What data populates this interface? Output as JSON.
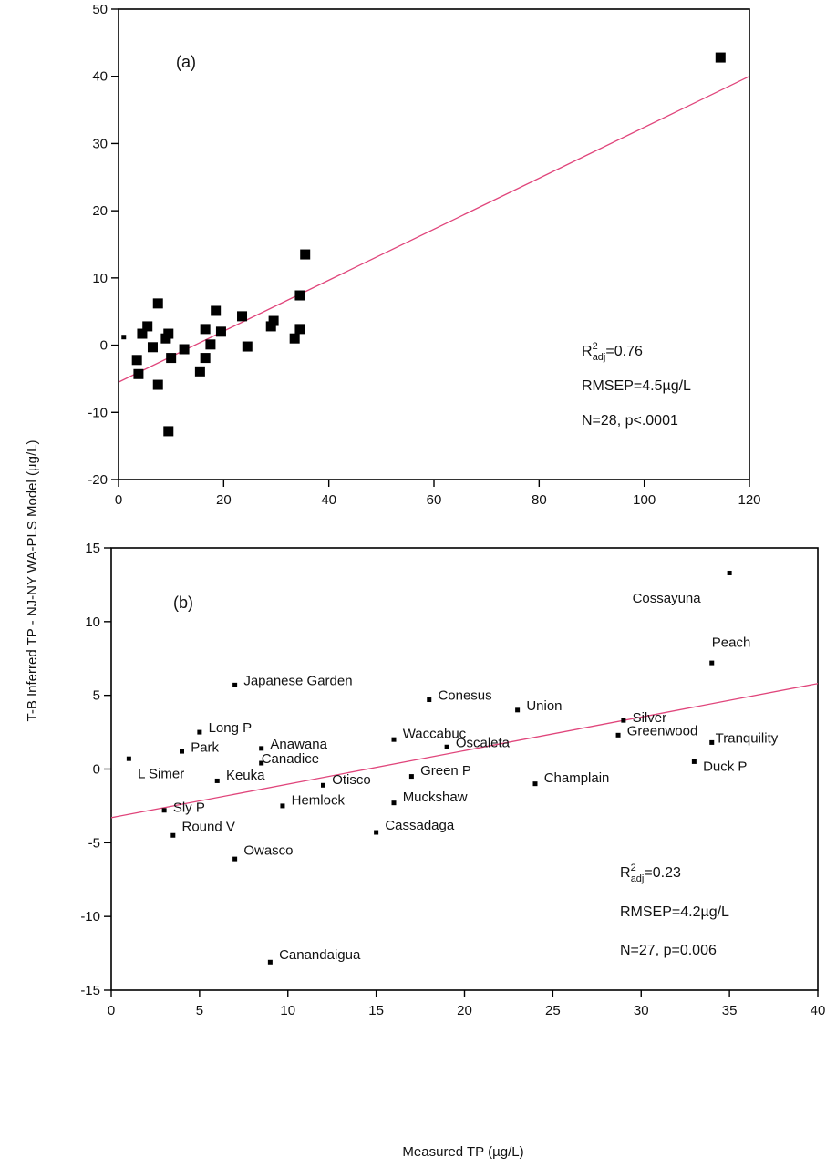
{
  "axes": {
    "shared_ylabel": "T-B Inferred TP - NJ-NY WA-PLS Model (µg/L)",
    "shared_xlabel": "Measured TP (µg/L)"
  },
  "chart_data": [
    {
      "type": "scatter",
      "panel_label": "(a)",
      "xlim": [
        0,
        120
      ],
      "ylim": [
        -20,
        50
      ],
      "x_ticks": [
        0,
        20,
        40,
        60,
        80,
        100,
        120
      ],
      "y_ticks": [
        -20,
        -10,
        0,
        10,
        20,
        30,
        40,
        50
      ],
      "stats": {
        "r2_prefix": "R",
        "r2_sup": "2",
        "r2_sub": "adj",
        "r2_value": "=0.76",
        "rmsep": "RMSEP=4.5µg/L",
        "n_p": "N=28, p<.0001"
      },
      "fit_line": {
        "x": [
          0,
          120
        ],
        "y": [
          -5.5,
          40
        ]
      },
      "points": [
        {
          "x": 1,
          "y": 1.2,
          "size": "small"
        },
        {
          "x": 3.5,
          "y": -2.2
        },
        {
          "x": 3.8,
          "y": -4.3
        },
        {
          "x": 4.5,
          "y": 1.7
        },
        {
          "x": 5.5,
          "y": 2.8
        },
        {
          "x": 6.5,
          "y": -0.3
        },
        {
          "x": 7.5,
          "y": 6.2
        },
        {
          "x": 7.5,
          "y": -5.9
        },
        {
          "x": 9,
          "y": 1.0
        },
        {
          "x": 9.5,
          "y": 1.7
        },
        {
          "x": 9.5,
          "y": -12.8
        },
        {
          "x": 10,
          "y": -1.9
        },
        {
          "x": 12.5,
          "y": -0.6
        },
        {
          "x": 15.5,
          "y": -3.9
        },
        {
          "x": 16.5,
          "y": 2.4
        },
        {
          "x": 16.5,
          "y": -1.9
        },
        {
          "x": 17.5,
          "y": 0.1
        },
        {
          "x": 18.5,
          "y": 5.1
        },
        {
          "x": 19.5,
          "y": 2.0
        },
        {
          "x": 23.5,
          "y": 4.3
        },
        {
          "x": 24.5,
          "y": -0.2
        },
        {
          "x": 29,
          "y": 2.8
        },
        {
          "x": 29.5,
          "y": 3.6
        },
        {
          "x": 33.5,
          "y": 1.0
        },
        {
          "x": 34.5,
          "y": 7.4
        },
        {
          "x": 34.5,
          "y": 2.4
        },
        {
          "x": 35.5,
          "y": 13.5
        },
        {
          "x": 114.5,
          "y": 42.8
        }
      ]
    },
    {
      "type": "scatter",
      "panel_label": "(b)",
      "xlim": [
        0,
        40
      ],
      "ylim": [
        -15,
        15
      ],
      "x_ticks": [
        0,
        5,
        10,
        15,
        20,
        25,
        30,
        35,
        40
      ],
      "y_ticks": [
        -15,
        -10,
        -5,
        0,
        5,
        10,
        15
      ],
      "stats": {
        "r2_prefix": "R",
        "r2_sup": "2",
        "r2_sub": "adj",
        "r2_value": "=0.23",
        "rmsep": "RMSEP=4.2µg/L",
        "n_p": "N=27, p=0.006"
      },
      "fit_line": {
        "x": [
          0,
          40
        ],
        "y": [
          -3.3,
          5.8
        ]
      },
      "points": [
        {
          "x": 1.0,
          "y": 0.7,
          "label": "L Simer",
          "lx": 1.5,
          "ly": -0.3
        },
        {
          "x": 3.0,
          "y": -2.8,
          "label": "Sly P",
          "lx": 3.5,
          "ly": -2.6
        },
        {
          "x": 3.5,
          "y": -4.5,
          "label": "Round V",
          "lx": 4.0,
          "ly": -3.9
        },
        {
          "x": 4.0,
          "y": 1.2,
          "label": "Park",
          "lx": 4.5,
          "ly": 1.5
        },
        {
          "x": 5.0,
          "y": 2.5,
          "label": "Long P",
          "lx": 5.5,
          "ly": 2.8
        },
        {
          "x": 6.0,
          "y": -0.8,
          "label": "Keuka",
          "lx": 6.5,
          "ly": -0.4
        },
        {
          "x": 7.0,
          "y": 5.7,
          "label": "Japanese Garden",
          "lx": 7.5,
          "ly": 6.0
        },
        {
          "x": 7.0,
          "y": -6.1,
          "label": "Owasco",
          "lx": 7.5,
          "ly": -5.5
        },
        {
          "x": 8.5,
          "y": 1.4,
          "label": "Anawana",
          "lx": 9.0,
          "ly": 1.7
        },
        {
          "x": 8.5,
          "y": 0.4,
          "label": "Canadice",
          "lx": 8.5,
          "ly": 0.7
        },
        {
          "x": 9.0,
          "y": -13.1,
          "label": "Canandaigua",
          "lx": 9.5,
          "ly": -12.6
        },
        {
          "x": 9.7,
          "y": -2.5,
          "label": "Hemlock",
          "lx": 10.2,
          "ly": -2.1
        },
        {
          "x": 12.0,
          "y": -1.1,
          "label": "Otisco",
          "lx": 12.5,
          "ly": -0.7
        },
        {
          "x": 15.0,
          "y": -4.3,
          "label": "Cassadaga",
          "lx": 15.5,
          "ly": -3.8
        },
        {
          "x": 16.0,
          "y": 2.0,
          "label": "Waccabuc",
          "lx": 16.5,
          "ly": 2.4
        },
        {
          "x": 16.0,
          "y": -2.3,
          "label": "Muckshaw",
          "lx": 16.5,
          "ly": -1.9
        },
        {
          "x": 17.0,
          "y": -0.5,
          "label": "Green P",
          "lx": 17.5,
          "ly": -0.1
        },
        {
          "x": 18.0,
          "y": 4.7,
          "label": "Conesus",
          "lx": 18.5,
          "ly": 5.0
        },
        {
          "x": 19.0,
          "y": 1.5,
          "label": "Oscaleta",
          "lx": 19.5,
          "ly": 1.8
        },
        {
          "x": 23.0,
          "y": 4.0,
          "label": "Union",
          "lx": 23.5,
          "ly": 4.3
        },
        {
          "x": 24.0,
          "y": -1.0,
          "label": "Champlain",
          "lx": 24.5,
          "ly": -0.6
        },
        {
          "x": 28.7,
          "y": 2.3,
          "label": "Greenwood",
          "lx": 29.2,
          "ly": 2.6
        },
        {
          "x": 29.0,
          "y": 3.3,
          "label": "Silver",
          "lx": 29.5,
          "ly": 3.5
        },
        {
          "x": 33.0,
          "y": 0.5,
          "label": "Duck P",
          "lx": 33.5,
          "ly": 0.2
        },
        {
          "x": 34.0,
          "y": 7.2,
          "label": "Peach",
          "lx": 34.0,
          "ly": 8.6
        },
        {
          "x": 34.0,
          "y": 1.8,
          "label": "Tranquility",
          "lx": 34.2,
          "ly": 2.1
        },
        {
          "x": 35.0,
          "y": 13.3,
          "label": "Cossayuna",
          "lx": 29.5,
          "ly": 11.6
        }
      ]
    }
  ]
}
